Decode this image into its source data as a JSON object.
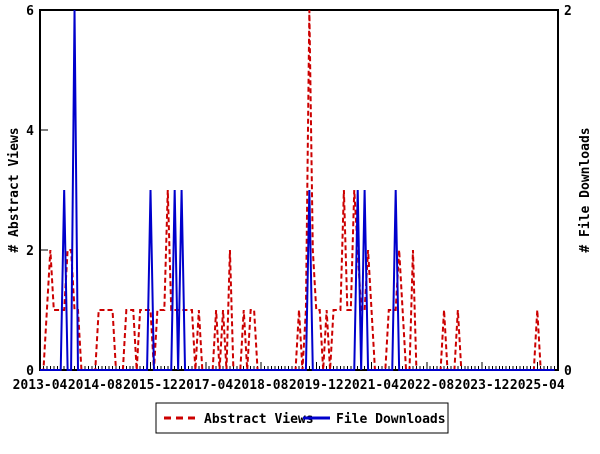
{
  "chart": {
    "background": "#ffffff",
    "frame_color": "#000000",
    "left_axis": {
      "label": "# Abstract Views",
      "min": 0,
      "max": 6,
      "ticks": [
        "0",
        "2",
        "4",
        "6"
      ]
    },
    "right_axis": {
      "label": "# File Downloads",
      "min": 0,
      "max": 2,
      "ticks": [
        "0",
        "2"
      ]
    },
    "x_axis": {
      "tick_labels": [
        "2013-04",
        "2014-08",
        "2015-12",
        "2017-04",
        "2018-08",
        "2019-12",
        "2021-04",
        "2022-08",
        "2023-12",
        "2025-04"
      ],
      "tick_interval_months": 16,
      "minor_interval_months": 1
    }
  },
  "legend": {
    "abstract_views_label": "Abstract Views",
    "file_downloads_label": "File Downloads"
  },
  "chart_data": {
    "type": "line",
    "title": "",
    "x_start": "2013-04",
    "x_end": "2025-09",
    "x_step_months": 1,
    "n_points": 150,
    "grid": false,
    "legend_position": "bottom",
    "x_tick_labels": [
      "2013-04",
      "2014-08",
      "2015-12",
      "2017-04",
      "2018-08",
      "2019-12",
      "2021-04",
      "2022-08",
      "2023-12",
      "2025-04"
    ],
    "axes": {
      "left": {
        "label": "# Abstract Views",
        "range": [
          0,
          6
        ],
        "ticks": [
          0,
          2,
          4,
          6
        ]
      },
      "right": {
        "label": "# File Downloads",
        "range": [
          0,
          2
        ],
        "ticks": [
          0,
          2
        ]
      }
    },
    "series": [
      {
        "name": "Abstract Views",
        "axis": "left",
        "color": "#cc0000",
        "style": "dashed",
        "values": [
          0,
          0,
          1,
          2,
          1,
          1,
          1,
          1,
          2,
          2,
          1,
          1,
          0,
          0,
          0,
          0,
          0,
          1,
          1,
          1,
          1,
          1,
          0,
          0,
          0,
          1,
          1,
          1,
          0,
          1,
          1,
          1,
          1,
          0,
          1,
          1,
          1,
          3,
          1,
          1,
          1,
          1,
          1,
          1,
          1,
          0,
          1,
          0,
          0,
          0,
          0,
          1,
          0,
          1,
          0,
          2,
          0,
          0,
          0,
          1,
          0,
          1,
          1,
          0,
          0,
          0,
          0,
          0,
          0,
          0,
          0,
          0,
          0,
          0,
          0,
          1,
          0,
          1,
          6,
          2,
          1,
          1,
          0,
          1,
          0,
          1,
          1,
          1,
          3,
          1,
          1,
          3,
          2,
          1,
          1,
          2,
          1,
          0,
          0,
          0,
          0,
          1,
          1,
          1,
          2,
          1,
          0,
          0,
          2,
          0,
          0,
          0,
          0,
          0,
          0,
          0,
          0,
          1,
          0,
          0,
          0,
          1,
          0,
          0,
          0,
          0,
          0,
          0,
          0,
          0,
          0,
          0,
          0,
          0,
          0,
          0,
          0,
          0,
          0,
          0,
          0,
          0,
          0,
          0,
          1,
          0,
          0,
          0,
          0,
          0
        ]
      },
      {
        "name": "File Downloads",
        "axis": "right",
        "color": "#0000cc",
        "style": "solid",
        "values": [
          0,
          0,
          0,
          0,
          0,
          0,
          0,
          1,
          0,
          0,
          2,
          0,
          0,
          0,
          0,
          0,
          0,
          0,
          0,
          0,
          0,
          0,
          0,
          0,
          0,
          0,
          0,
          0,
          0,
          0,
          0,
          0,
          1,
          0,
          0,
          0,
          0,
          0,
          0,
          1,
          0,
          1,
          0,
          0,
          0,
          0,
          0,
          0,
          0,
          0,
          0,
          0,
          0,
          0,
          0,
          0,
          0,
          0,
          0,
          0,
          0,
          0,
          0,
          0,
          0,
          0,
          0,
          0,
          0,
          0,
          0,
          0,
          0,
          0,
          0,
          0,
          0,
          0,
          1,
          0,
          0,
          0,
          0,
          0,
          0,
          0,
          0,
          0,
          0,
          0,
          0,
          0,
          1,
          0,
          1,
          0,
          0,
          0,
          0,
          0,
          0,
          0,
          0,
          1,
          0,
          0,
          0,
          0,
          0,
          0,
          0,
          0,
          0,
          0,
          0,
          0,
          0,
          0,
          0,
          0,
          0,
          0,
          0,
          0,
          0,
          0,
          0,
          0,
          0,
          0,
          0,
          0,
          0,
          0,
          0,
          0,
          0,
          0,
          0,
          0,
          0,
          0,
          0,
          0,
          0,
          0,
          0,
          0,
          0,
          0
        ]
      }
    ]
  }
}
